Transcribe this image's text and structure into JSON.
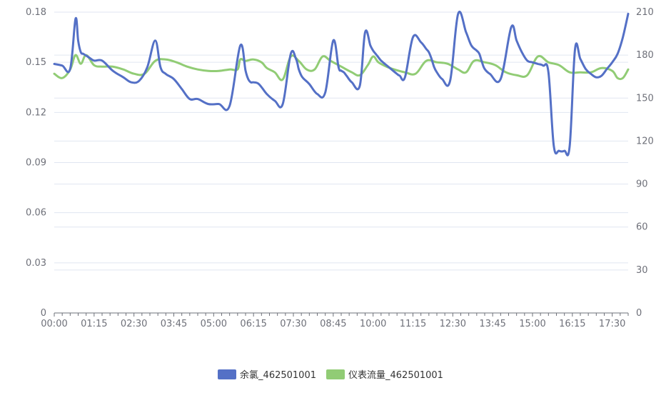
{
  "chart_data": {
    "type": "line",
    "title": "",
    "xlabel": "",
    "ylabel_left": "",
    "ylabel_right": "",
    "x_ticks": [
      "00:00",
      "01:15",
      "02:30",
      "03:45",
      "05:00",
      "06:15",
      "07:30",
      "08:45",
      "10:00",
      "11:15",
      "12:30",
      "13:45",
      "15:00",
      "16:15",
      "17:30"
    ],
    "x_range_minutes": [
      0,
      1080
    ],
    "left_axis": {
      "ylim": [
        0,
        0.18
      ],
      "ticks": [
        "0",
        "0.03",
        "0.06",
        "0.09",
        "0.12",
        "0.15",
        "0.18"
      ]
    },
    "right_axis": {
      "ylim": [
        0,
        210
      ],
      "ticks": [
        "0",
        "30",
        "60",
        "90",
        "120",
        "150",
        "180",
        "210"
      ]
    },
    "grid": true,
    "legend_position": "bottom",
    "series": [
      {
        "name": "余氯_462501001",
        "axis": "left",
        "color": "#5470c6",
        "x_minutes": [
          0,
          15,
          30,
          40,
          45,
          50,
          55,
          65,
          75,
          90,
          110,
          130,
          145,
          160,
          175,
          190,
          200,
          210,
          225,
          240,
          255,
          270,
          290,
          310,
          330,
          350,
          360,
          365,
          370,
          375,
          385,
          400,
          415,
          430,
          445,
          455,
          460,
          465,
          470,
          480,
          495,
          510,
          525,
          535,
          540,
          545,
          550,
          560,
          575,
          585,
          595,
          600,
          605,
          610,
          615,
          630,
          645,
          650,
          660,
          675,
          690,
          700,
          705,
          710,
          715,
          720,
          730,
          745,
          760,
          775,
          785,
          795,
          800,
          805,
          810,
          820,
          840,
          860,
          870,
          880,
          890,
          900,
          910,
          920,
          930,
          940,
          950,
          960,
          970,
          980,
          990,
          1000,
          1010,
          1020,
          1030,
          1040,
          1050,
          1060,
          1070,
          1080
        ],
        "values": [
          0.149,
          0.148,
          0.146,
          0.176,
          0.163,
          0.156,
          0.155,
          0.153,
          0.151,
          0.151,
          0.145,
          0.141,
          0.138,
          0.139,
          0.147,
          0.163,
          0.147,
          0.143,
          0.14,
          0.134,
          0.128,
          0.128,
          0.125,
          0.125,
          0.124,
          0.16,
          0.145,
          0.14,
          0.138,
          0.138,
          0.137,
          0.131,
          0.127,
          0.125,
          0.155,
          0.152,
          0.146,
          0.142,
          0.14,
          0.137,
          0.131,
          0.132,
          0.163,
          0.147,
          0.145,
          0.144,
          0.142,
          0.138,
          0.136,
          0.168,
          0.16,
          0.157,
          0.155,
          0.153,
          0.151,
          0.147,
          0.143,
          0.142,
          0.141,
          0.165,
          0.162,
          0.158,
          0.156,
          0.152,
          0.147,
          0.144,
          0.14,
          0.139,
          0.179,
          0.168,
          0.16,
          0.157,
          0.155,
          0.15,
          0.146,
          0.143,
          0.14,
          0.171,
          0.163,
          0.156,
          0.151,
          0.15,
          0.149,
          0.148,
          0.144,
          0.1,
          0.097,
          0.097,
          0.1,
          0.158,
          0.152,
          0.146,
          0.143,
          0.141,
          0.142,
          0.146,
          0.15,
          0.155,
          0.165,
          0.179
        ],
        "note": ""
      },
      {
        "name": "仪表流量_462501001",
        "axis": "right",
        "color": "#91cc75",
        "x_minutes": [
          0,
          15,
          30,
          40,
          50,
          60,
          75,
          90,
          110,
          130,
          150,
          170,
          190,
          210,
          230,
          250,
          270,
          290,
          310,
          330,
          345,
          350,
          360,
          375,
          390,
          400,
          415,
          430,
          445,
          460,
          475,
          490,
          505,
          520,
          540,
          560,
          575,
          590,
          600,
          610,
          625,
          640,
          660,
          680,
          700,
          720,
          740,
          760,
          775,
          790,
          810,
          830,
          850,
          870,
          890,
          910,
          930,
          950,
          970,
          990,
          1010,
          1030,
          1050,
          1060,
          1070,
          1080
        ],
        "values": [
          167,
          164,
          170,
          180,
          174,
          180,
          173,
          172,
          172,
          170,
          167,
          167,
          176,
          177,
          175,
          172,
          170,
          169,
          169,
          170,
          170,
          177,
          176,
          177,
          175,
          171,
          168,
          163,
          179,
          176,
          170,
          170,
          179,
          176,
          172,
          168,
          166,
          173,
          179,
          175,
          172,
          170,
          168,
          167,
          176,
          175,
          174,
          170,
          168,
          176,
          175,
          173,
          168,
          166,
          166,
          179,
          175,
          173,
          168,
          168,
          168,
          171,
          169,
          164,
          164,
          170
        ],
        "note": ""
      }
    ]
  }
}
